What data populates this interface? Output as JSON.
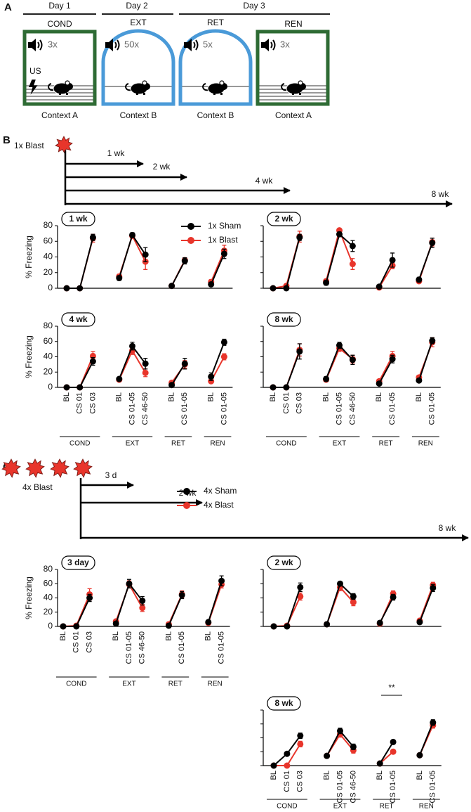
{
  "panel_labels": [
    "A",
    "B",
    "C"
  ],
  "panel_a": {
    "days": [
      "Day 1",
      "Day 2",
      "Day 3"
    ],
    "phases": [
      {
        "phase": "COND",
        "count": "3x",
        "context": "Context A"
      },
      {
        "phase": "EXT",
        "count": "50x",
        "context": "Context B"
      },
      {
        "phase": "RET",
        "count": "5x",
        "context": "Context B"
      },
      {
        "phase": "REN",
        "count": "3x",
        "context": "Context A"
      }
    ],
    "us_label": "US"
  },
  "panel_b": {
    "blast_label": "1x Blast",
    "timeline": [
      "1 wk",
      "2 wk",
      "4 wk",
      "8 wk"
    ]
  },
  "panel_c": {
    "blast_label": "4x Blast",
    "timeline": [
      "3 d",
      "2 wk",
      "8 wk"
    ]
  },
  "chart_data": [
    {
      "type": "line",
      "title": "1 wk",
      "ylabel": "% Freezing",
      "ylim": [
        0,
        80
      ],
      "yticks": [
        0,
        20,
        40,
        60,
        80
      ],
      "show_tick_labels": true,
      "legend": true,
      "series": [
        {
          "name": "1x Sham",
          "color": "#000000",
          "values": [
            0,
            0,
            65,
            null,
            13,
            68,
            43,
            null,
            3,
            35,
            null,
            5,
            44
          ],
          "errors": [
            0,
            0,
            4,
            null,
            3,
            3,
            9,
            null,
            1,
            4,
            null,
            2,
            6
          ]
        },
        {
          "name": "1x Blast",
          "color": "#e8352b",
          "values": [
            0,
            0,
            64,
            null,
            15,
            67,
            34,
            null,
            3,
            36,
            null,
            8,
            48
          ],
          "errors": [
            0,
            0,
            5,
            null,
            3,
            3,
            10,
            null,
            1,
            3,
            null,
            3,
            7
          ]
        }
      ]
    },
    {
      "type": "line",
      "title": "2 wk",
      "ylim": [
        0,
        80
      ],
      "yticks": [
        0,
        20,
        40,
        60,
        80
      ],
      "show_tick_labels": false,
      "legend": false,
      "series": [
        {
          "color": "#000000",
          "values": [
            0,
            0,
            65,
            null,
            7,
            69,
            54,
            null,
            2,
            36,
            null,
            11,
            58
          ],
          "errors": [
            0,
            0,
            4,
            null,
            3,
            3,
            7,
            null,
            1,
            9,
            null,
            3,
            6
          ]
        },
        {
          "color": "#e8352b",
          "values": [
            0,
            3,
            66,
            null,
            9,
            74,
            31,
            null,
            1,
            29,
            null,
            9,
            59
          ],
          "errors": [
            0,
            2,
            7,
            null,
            2,
            2,
            7,
            null,
            1,
            4,
            null,
            2,
            5
          ]
        }
      ]
    },
    {
      "type": "line",
      "title": "4 wk",
      "ylabel": "% Freezing",
      "ylim": [
        0,
        80
      ],
      "yticks": [
        0,
        20,
        40,
        60,
        80
      ],
      "show_tick_labels": true,
      "legend": false,
      "categories": [
        "BL",
        "CS 01",
        "CS 03",
        null,
        "BL",
        "CS 01-05",
        "CS 46-50",
        null,
        "BL",
        "CS 01-05",
        null,
        "BL",
        "CS 01-05"
      ],
      "groups": [
        "COND",
        "EXT",
        "RET",
        "REN"
      ],
      "series": [
        {
          "color": "#000000",
          "values": [
            0,
            0,
            34,
            null,
            11,
            54,
            31,
            null,
            3,
            31,
            null,
            14,
            59
          ],
          "errors": [
            0,
            0,
            5,
            null,
            2,
            5,
            7,
            null,
            1,
            7,
            null,
            5,
            4
          ]
        },
        {
          "color": "#e8352b",
          "values": [
            0,
            0,
            41,
            null,
            10,
            48,
            19,
            null,
            6,
            30,
            null,
            8,
            40
          ],
          "errors": [
            0,
            0,
            6,
            null,
            2,
            5,
            5,
            null,
            2,
            5,
            null,
            2,
            4
          ]
        }
      ]
    },
    {
      "type": "line",
      "title": "8 wk",
      "ylim": [
        0,
        80
      ],
      "yticks": [
        0,
        20,
        40,
        60,
        80
      ],
      "show_tick_labels": false,
      "legend": false,
      "categories": [
        "BL",
        "CS 01",
        "CS 03",
        null,
        "BL",
        "CS 01-05",
        "CS 46-50",
        null,
        "BL",
        "CS 01-05",
        null,
        "BL",
        "CS 01-05"
      ],
      "groups": [
        "COND",
        "EXT",
        "RET",
        "REN"
      ],
      "series": [
        {
          "color": "#000000",
          "values": [
            0,
            0,
            47,
            null,
            11,
            55,
            36,
            null,
            5,
            37,
            null,
            9,
            61
          ],
          "errors": [
            0,
            0,
            10,
            null,
            3,
            4,
            6,
            null,
            2,
            5,
            null,
            2,
            4
          ]
        },
        {
          "color": "#e8352b",
          "values": [
            0,
            0,
            49,
            null,
            10,
            51,
            37,
            null,
            8,
            41,
            null,
            13,
            59
          ],
          "errors": [
            0,
            0,
            8,
            null,
            2,
            4,
            5,
            null,
            2,
            6,
            null,
            2,
            6
          ]
        }
      ]
    },
    {
      "type": "line",
      "title": "3 day",
      "ylabel": "% Freezing",
      "ylim": [
        0,
        80
      ],
      "yticks": [
        0,
        20,
        40,
        60,
        80
      ],
      "show_tick_labels": true,
      "legend": true,
      "categories": [
        "BL",
        "CS 01",
        "CS 03",
        null,
        "BL",
        "CS 01-05",
        "CS 46-50",
        null,
        "BL",
        "CS 01-05",
        null,
        "BL",
        "CS 01-05"
      ],
      "groups": [
        "COND",
        "EXT",
        "RET",
        "REN"
      ],
      "series": [
        {
          "name": "4x Sham",
          "color": "#000000",
          "values": [
            0,
            0,
            40,
            null,
            4,
            60,
            36,
            null,
            1,
            44,
            null,
            6,
            64
          ],
          "errors": [
            0,
            0,
            5,
            null,
            1,
            6,
            6,
            null,
            1,
            5,
            null,
            1,
            7
          ]
        },
        {
          "name": "4x Blast",
          "color": "#e8352b",
          "values": [
            0,
            1,
            45,
            null,
            7,
            59,
            26,
            null,
            3,
            45,
            null,
            5,
            59
          ],
          "errors": [
            0,
            1,
            8,
            null,
            1,
            5,
            5,
            null,
            2,
            5,
            null,
            1,
            5
          ]
        }
      ]
    },
    {
      "type": "line",
      "title": "2 wk",
      "ylim": [
        0,
        80
      ],
      "yticks": [
        0,
        20,
        40,
        60,
        80
      ],
      "show_tick_labels": false,
      "legend": false,
      "series": [
        {
          "color": "#000000",
          "values": [
            0,
            0,
            55,
            null,
            3,
            60,
            42,
            null,
            5,
            41,
            null,
            6,
            54
          ],
          "errors": [
            0,
            0,
            6,
            null,
            1,
            3,
            4,
            null,
            1,
            4,
            null,
            1,
            5
          ]
        },
        {
          "color": "#e8352b",
          "values": [
            0,
            1,
            42,
            null,
            3,
            55,
            34,
            null,
            4,
            46,
            null,
            8,
            58
          ],
          "errors": [
            0,
            1,
            5,
            null,
            1,
            5,
            5,
            null,
            1,
            4,
            null,
            1,
            4
          ]
        }
      ]
    },
    {
      "type": "line",
      "title": "8 wk",
      "ylim": [
        0,
        80
      ],
      "yticks": [
        0,
        20,
        40,
        60,
        80
      ],
      "show_tick_labels": false,
      "legend": false,
      "annotation": "**",
      "categories": [
        "BL",
        "CS 01",
        "CS 03",
        null,
        "BL",
        "CS 01-05",
        "CS 46-50",
        null,
        "BL",
        "CS 01-05",
        null,
        "BL",
        "CS 01-05"
      ],
      "groups": [
        "COND",
        "EXT",
        "RET",
        "REN"
      ],
      "series": [
        {
          "color": "#000000",
          "values": [
            0,
            17,
            43,
            null,
            14,
            50,
            27,
            null,
            3,
            34,
            null,
            15,
            62
          ],
          "errors": [
            0,
            0,
            4,
            null,
            2,
            4,
            4,
            null,
            1,
            3,
            null,
            2,
            4
          ]
        },
        {
          "color": "#e8352b",
          "values": [
            0,
            0,
            31,
            null,
            14,
            45,
            22,
            null,
            3,
            20,
            null,
            15,
            58
          ],
          "errors": [
            0,
            0,
            4,
            null,
            2,
            4,
            4,
            null,
            1,
            3,
            null,
            2,
            4
          ]
        }
      ]
    }
  ]
}
